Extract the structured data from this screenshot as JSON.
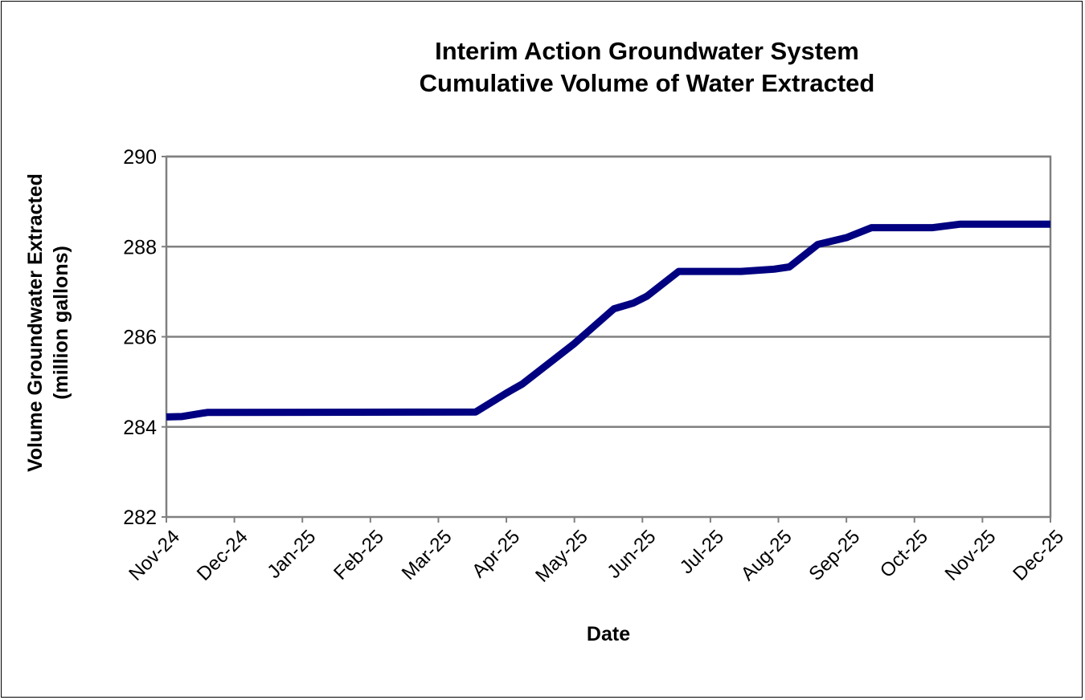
{
  "chart_data": {
    "type": "line",
    "title": [
      "Interim Action Groundwater System",
      "Cumulative Volume of Water Extracted"
    ],
    "xlabel": "Date",
    "ylabel": [
      "Volume Groundwater Extracted",
      "(million gallons)"
    ],
    "ylim": [
      282,
      290
    ],
    "yticks": [
      "282",
      "284",
      "286",
      "288",
      "290"
    ],
    "xticks": [
      "Nov-24",
      "Dec-24",
      "Jan-25",
      "Feb-25",
      "Mar-25",
      "Apr-25",
      "May-25",
      "Jun-25",
      "Jul-25",
      "Aug-25",
      "Sep-25",
      "Oct-25",
      "Nov-25",
      "Dec-25"
    ],
    "grid": "horizontal",
    "line_color": "#000080",
    "series": [
      {
        "x": [
          "2024-11-01",
          "2024-11-08",
          "2024-11-19",
          "2025-03-18",
          "2025-04-01",
          "2025-04-08",
          "2025-05-01",
          "2025-05-19",
          "2025-05-28",
          "2025-06-03",
          "2025-06-17",
          "2025-07-15",
          "2025-07-30",
          "2025-08-06",
          "2025-08-19",
          "2025-09-01",
          "2025-09-12",
          "2025-10-09",
          "2025-10-22",
          "2025-12-01"
        ],
        "y": [
          284.22,
          284.23,
          284.32,
          284.33,
          284.75,
          284.95,
          285.85,
          286.62,
          286.75,
          286.9,
          287.45,
          287.45,
          287.5,
          287.55,
          288.05,
          288.2,
          288.42,
          288.42,
          288.5,
          288.5
        ]
      }
    ]
  }
}
